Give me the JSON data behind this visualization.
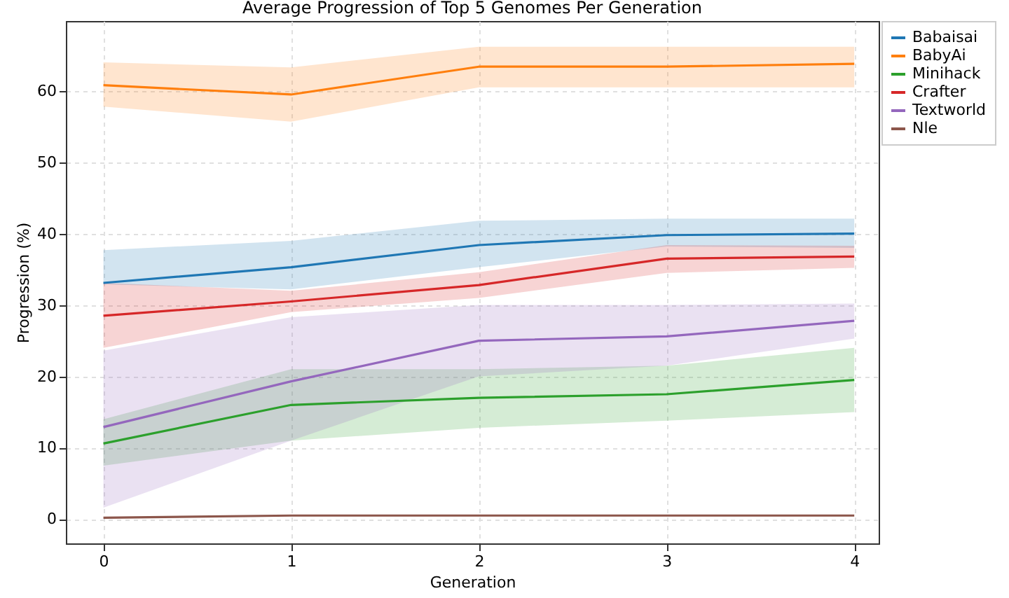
{
  "chart_data": {
    "type": "line",
    "title": "Average Progression of Top 5 Genomes Per Generation",
    "xlabel": "Generation",
    "ylabel": "Progression (%)",
    "x": [
      0,
      1,
      2,
      3,
      4
    ],
    "xlim": [
      -0.2,
      4.13
    ],
    "xticks": [
      0,
      1,
      2,
      3,
      4
    ],
    "ylim": [
      -3.4,
      69.8
    ],
    "yticks": [
      0,
      10,
      20,
      30,
      40,
      50,
      60
    ],
    "grid": true,
    "legend": "right",
    "line_style": "solid",
    "marker": "none",
    "series": [
      {
        "name": "Babaisai",
        "color": "#1f77b4",
        "values": [
          33.1,
          35.3,
          38.4,
          39.8,
          40.0
        ],
        "lower": [
          32.9,
          32.2,
          35.3,
          38.2,
          38.0
        ],
        "upper": [
          37.7,
          39.0,
          41.8,
          42.1,
          42.1
        ]
      },
      {
        "name": "BabyAi",
        "color": "#ff7f0e",
        "values": [
          60.8,
          59.5,
          63.4,
          63.4,
          63.8
        ],
        "lower": [
          57.8,
          55.7,
          60.5,
          60.5,
          60.5
        ],
        "upper": [
          64.0,
          63.3,
          66.2,
          66.2,
          66.2
        ]
      },
      {
        "name": "Minihack",
        "color": "#2ca02c",
        "values": [
          10.6,
          16.0,
          17.0,
          17.5,
          19.5
        ],
        "lower": [
          7.5,
          11.0,
          12.8,
          13.8,
          15.0
        ],
        "upper": [
          14.0,
          21.0,
          21.0,
          21.5,
          24.0
        ]
      },
      {
        "name": "Crafter",
        "color": "#d62728",
        "values": [
          28.5,
          30.5,
          32.8,
          36.5,
          36.8
        ],
        "lower": [
          24.0,
          29.0,
          31.0,
          34.5,
          35.2
        ],
        "upper": [
          33.1,
          32.0,
          34.6,
          38.4,
          38.3
        ]
      },
      {
        "name": "Textworld",
        "color": "#9467bd",
        "values": [
          12.9,
          19.3,
          25.0,
          25.6,
          27.8
        ],
        "lower": [
          1.6,
          11.0,
          20.0,
          21.5,
          25.3
        ],
        "upper": [
          23.6,
          28.3,
          30.0,
          30.0,
          30.2
        ]
      },
      {
        "name": "Nle",
        "color": "#8c564b",
        "values": [
          0.2,
          0.5,
          0.5,
          0.5,
          0.5
        ]
      }
    ]
  }
}
